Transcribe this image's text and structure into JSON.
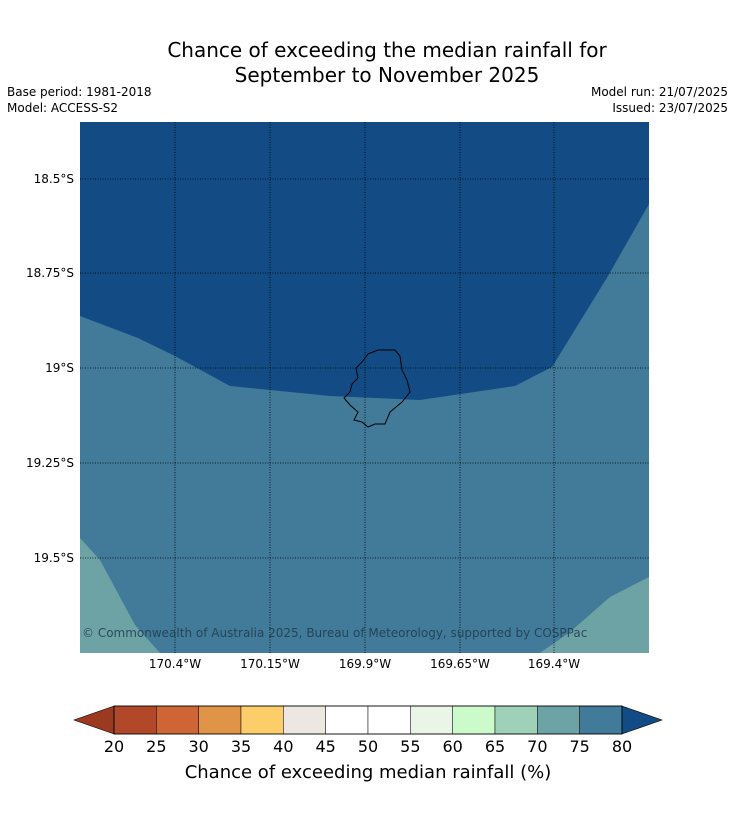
{
  "title_line1": "Chance of exceeding the median rainfall for",
  "title_line2": "September to November 2025",
  "meta_left": [
    "Base period: 1981-2018",
    "Model: ACCESS-S2"
  ],
  "meta_right": [
    "Model run: 21/07/2025",
    "Issued: 23/07/2025"
  ],
  "lat_labels": [
    "18.5°S",
    "18.75°S",
    "19°S",
    "19.25°S",
    "19.5°S"
  ],
  "lon_labels": [
    "170.4°W",
    "170.15°W",
    "169.9°W",
    "169.65°W",
    "169.4°W"
  ],
  "copyright": "© Commonwealth of Australia 2025, Bureau of Meteorology, supported by COSPPac",
  "colorbar": {
    "ticks": [
      "20",
      "25",
      "30",
      "35",
      "40",
      "45",
      "50",
      "55",
      "60",
      "65",
      "70",
      "75",
      "80"
    ],
    "colors": [
      "#b2482a",
      "#cf6534",
      "#e09448",
      "#fdcd6a",
      "#ece7e1",
      "#ffffff",
      "#ffffff",
      "#eaf5e8",
      "#cbfbca",
      "#9fd1b8",
      "#6ea3a6",
      "#427a99"
    ],
    "under_color": "#9b3a20",
    "over_color": "#134c85",
    "label": "Chance of exceeding median rainfall (%)"
  },
  "map_colors": {
    "category_80_plus": "#134c85",
    "category_75_80": "#427a99",
    "category_70_75": "#6ea3a6"
  }
}
